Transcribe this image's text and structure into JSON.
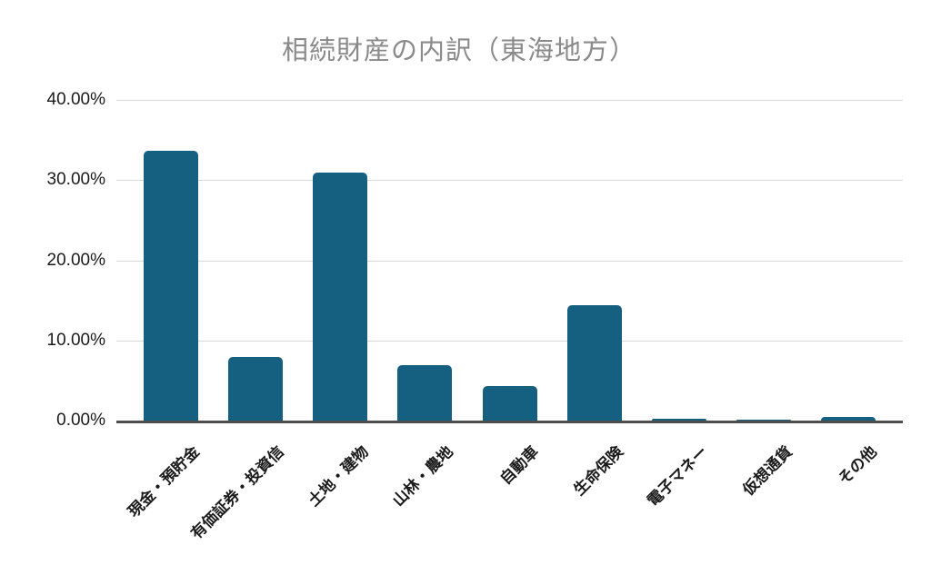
{
  "title": "相続財産の内訳（東海地方）",
  "colors": {
    "bar": "#155f80",
    "gridline": "#d9d9d9",
    "axis_line": "#4d4d4d",
    "title_text": "#8a8a8a",
    "tick_text": "#1a1a1a",
    "background": "#ffffff"
  },
  "chart_data": {
    "type": "bar",
    "title": "相続財産の内訳（東海地方）",
    "categories": [
      "現金・預貯金",
      "有価証券・投資信",
      "土地・建物",
      "山林・農地",
      "自動車",
      "生命保険",
      "電子マネー",
      "仮想通貨",
      "その他"
    ],
    "values": [
      33.6,
      7.9,
      30.9,
      6.9,
      4.3,
      14.4,
      0.2,
      0.1,
      0.4
    ],
    "value_unit": "percent",
    "yticks": [
      "40.00%",
      "30.00%",
      "20.00%",
      "10.00%",
      "0.00%"
    ],
    "ytick_values": [
      40,
      30,
      20,
      10,
      0
    ],
    "ylim": [
      0,
      40
    ],
    "xlabel": "",
    "ylabel": "",
    "grid": "horizontal",
    "legend": "none",
    "x_label_rotation_deg": 45
  }
}
